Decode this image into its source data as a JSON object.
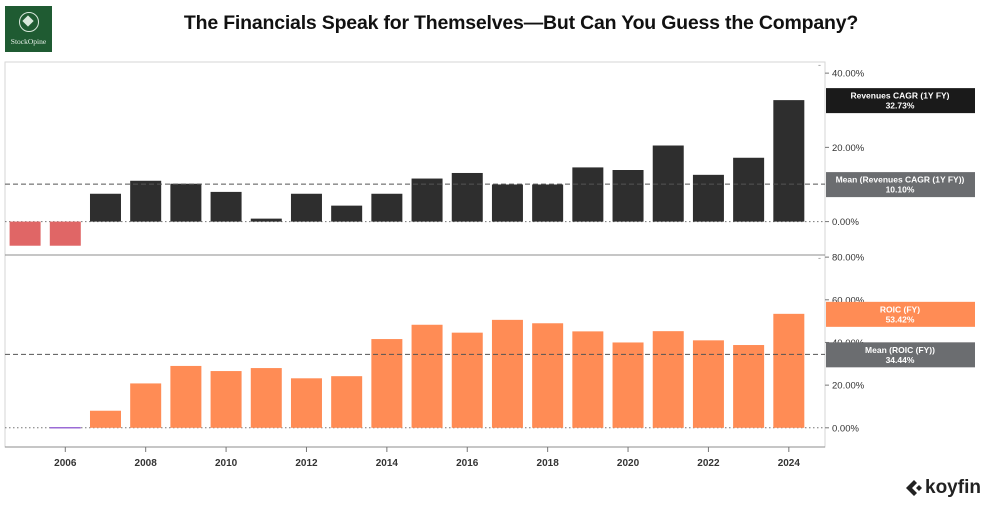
{
  "title": "The Financials Speak for Themselves—But Can You Guess the Company?",
  "logo": {
    "text": "StockOpine",
    "icon": "stock-opine-emblem",
    "color": "#1f5b32"
  },
  "brand": {
    "text": "koyfin",
    "icon": "koyfin-chevron-icon"
  },
  "chart_data": [
    {
      "type": "bar",
      "panel": "top",
      "series_name": "Revenues CAGR (1Y FY)",
      "x": [
        2005,
        2006,
        2007,
        2008,
        2009,
        2010,
        2011,
        2012,
        2013,
        2014,
        2015,
        2016,
        2017,
        2018,
        2019,
        2020,
        2021,
        2022,
        2023,
        2024
      ],
      "values": [
        -6.5,
        -6.5,
        7.5,
        11.0,
        10.2,
        8.0,
        0.8,
        7.5,
        4.3,
        7.5,
        11.6,
        13.1,
        10.0,
        10.0,
        14.6,
        13.9,
        20.5,
        12.6,
        17.2,
        32.73
      ],
      "ylim": [
        -9,
        43
      ],
      "yticks": [
        "0.00%",
        "20.00%",
        "40.00%"
      ],
      "ytick_values": [
        0,
        20,
        40
      ],
      "mean": 10.1,
      "labels": [
        {
          "name": "Revenues CAGR (1Y FY)",
          "value": "32.73%",
          "data_value": 32.73,
          "color": "#1a1a1a"
        },
        {
          "name": "Mean (Revenues CAGR (1Y FY))",
          "value": "10.10%",
          "data_value": 10.1,
          "color": "#6b6d70"
        }
      ],
      "colors": {
        "positive": "#2e2e2e",
        "negative": "#e06666"
      }
    },
    {
      "type": "bar",
      "panel": "bottom",
      "series_name": "ROIC (FY)",
      "x": [
        2005,
        2006,
        2007,
        2008,
        2009,
        2010,
        2011,
        2012,
        2013,
        2014,
        2015,
        2016,
        2017,
        2018,
        2019,
        2020,
        2021,
        2022,
        2023,
        2024
      ],
      "values": [
        null,
        0.0,
        8.0,
        20.8,
        29.0,
        26.6,
        28.0,
        23.2,
        24.2,
        41.6,
        48.3,
        44.6,
        50.6,
        49.0,
        45.2,
        40.0,
        45.3,
        41.0,
        38.8,
        53.42
      ],
      "ylim": [
        -9,
        81
      ],
      "yticks": [
        "0.00%",
        "20.00%",
        "40.00%",
        "60.00%",
        "80.00%"
      ],
      "ytick_values": [
        0,
        20,
        40,
        60,
        80
      ],
      "mean": 34.44,
      "labels": [
        {
          "name": "ROIC (FY)",
          "value": "53.42%",
          "data_value": 53.42,
          "color": "#ff8c55"
        },
        {
          "name": "Mean (ROIC (FY))",
          "value": "34.44%",
          "data_value": 34.44,
          "color": "#6b6d70"
        }
      ],
      "colors": {
        "positive": "#ff8c55",
        "zero": "#9b6bd6"
      }
    }
  ],
  "x_axis": {
    "tick_labels": [
      "2006",
      "2008",
      "2010",
      "2012",
      "2014",
      "2016",
      "2018",
      "2020",
      "2022",
      "2024"
    ],
    "tick_values": [
      2006,
      2008,
      2010,
      2012,
      2014,
      2016,
      2018,
      2020,
      2022,
      2024
    ],
    "range": [
      2004.5,
      2024.9
    ]
  }
}
